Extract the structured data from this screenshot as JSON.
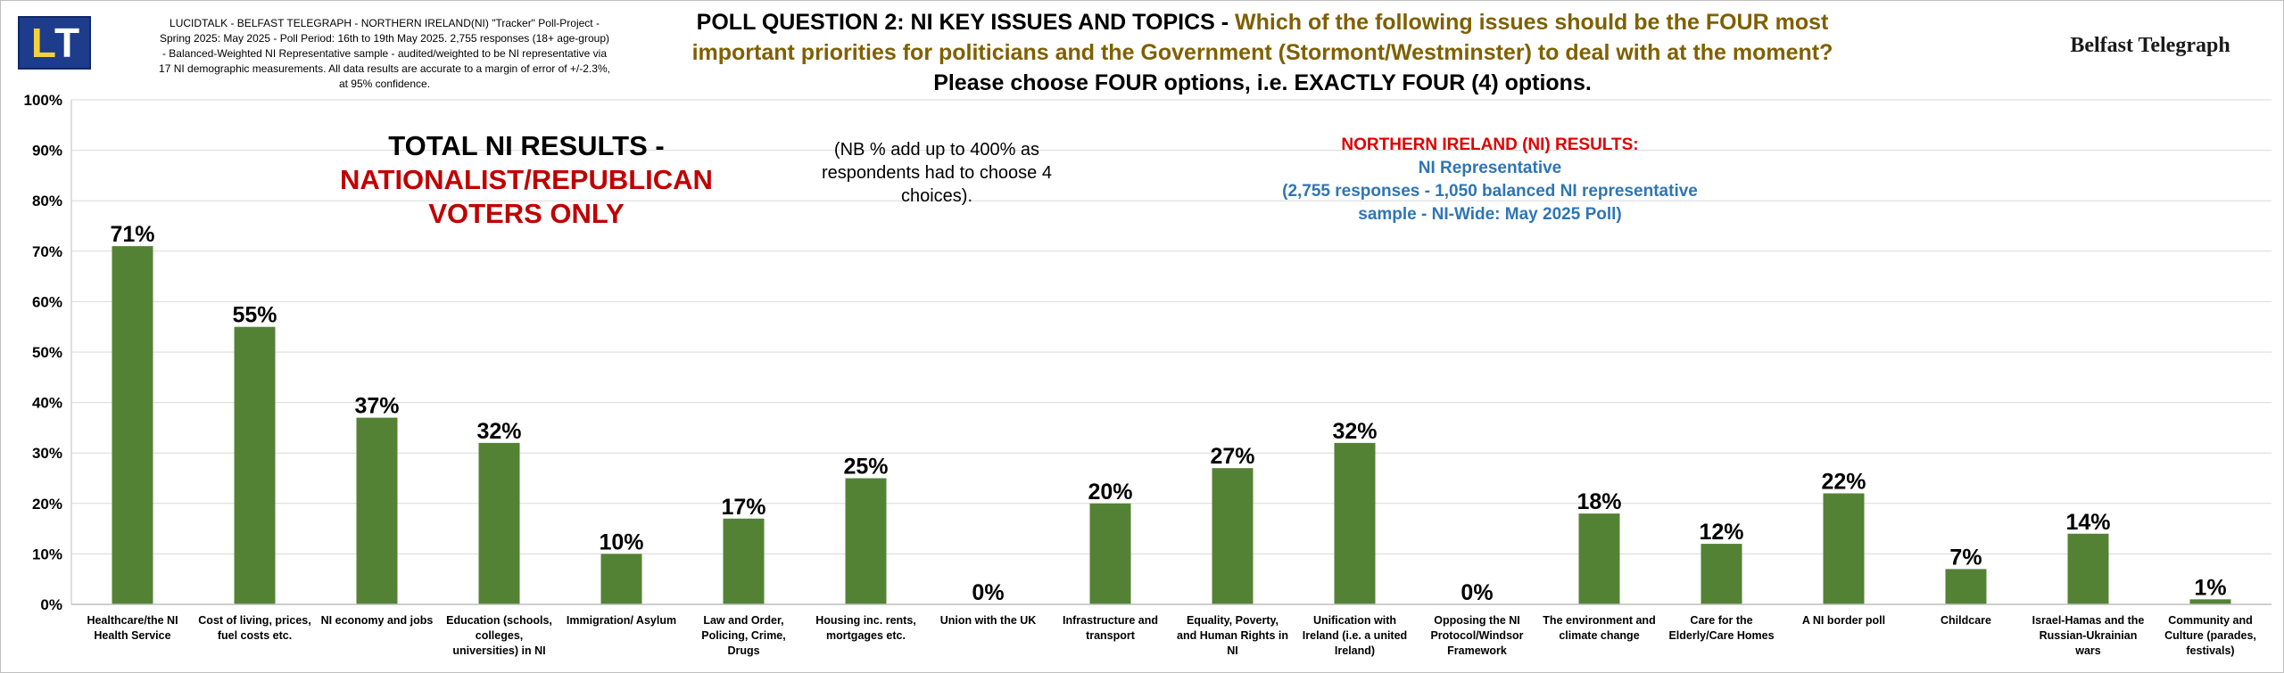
{
  "header": {
    "logo_text_l": "L",
    "logo_text_t": "T",
    "source_note": "LUCIDTALK - BELFAST TELEGRAPH - NORTHERN IRELAND(NI) \"Tracker\" Poll-Project - Spring 2025: May 2025 - Poll Period: 16th to 19th May 2025. 2,755 responses (18+ age-group) - Balanced-Weighted NI Representative sample - audited/weighted to be NI representative via 17 NI demographic measurements. All data results are accurate to a margin of error of +/-2.3%, at 95% confidence.",
    "title_lead": "POLL QUESTION 2: NI KEY ISSUES AND TOPICS - ",
    "title_mid": "Which of the following issues should be the FOUR most important priorities for politicians and the Government (Stormont/Westminster) to deal with at the moment?",
    "title_tail": " Please choose FOUR options, i.e. EXACTLY FOUR (4) options.",
    "brand": "Belfast Telegraph"
  },
  "annotations": {
    "total_line1": "TOTAL NI RESULTS -",
    "total_line2": "NATIONALIST/REPUBLICAN",
    "total_line3": "VOTERS ONLY",
    "nb_note": "(NB % add up to 400% as respondents had to choose 4 choices).",
    "ni_heading": "NORTHERN IRELAND (NI) RESULTS:",
    "ni_line2": "NI Representative",
    "ni_line3": "(2,755 responses - 1,050 balanced NI representative sample - NI-Wide: May 2025 Poll)"
  },
  "colors": {
    "bar": "#548235",
    "grid": "#d9d9d9",
    "title_accent": "#7f6000",
    "red_accent": "#c00000",
    "blue_accent": "#2e75b6",
    "logo_bg": "#1d3c8c",
    "logo_l": "#f2d33a"
  },
  "chart_data": {
    "type": "bar",
    "title": "",
    "xlabel": "",
    "ylabel": "",
    "ylim": [
      0,
      100
    ],
    "yticks": [
      "0%",
      "10%",
      "20%",
      "30%",
      "40%",
      "50%",
      "60%",
      "70%",
      "80%",
      "90%",
      "100%"
    ],
    "grid": true,
    "categories": [
      "Healthcare/the NI Health Service",
      "Cost of living, prices, fuel costs etc.",
      "NI economy and jobs",
      "Education (schools, colleges, universities) in NI",
      "Immigration/ Asylum",
      "Law and Order, Policing, Crime, Drugs",
      "Housing inc. rents, mortgages etc.",
      "Union with the UK",
      "Infrastructure and transport",
      "Equality, Poverty, and Human Rights in NI",
      "Unification with Ireland (i.e. a united Ireland)",
      "Opposing the NI Protocol/Windsor Framework",
      "The environment and climate change",
      "Care for the Elderly/Care Homes",
      "A NI border poll",
      "Childcare",
      "Israel-Hamas and the Russian-Ukrainian wars",
      "Community and Culture (parades, festivals)"
    ],
    "values": [
      71,
      55,
      37,
      32,
      10,
      17,
      25,
      0,
      20,
      27,
      32,
      0,
      18,
      12,
      22,
      7,
      14,
      1
    ],
    "data_labels": [
      "71%",
      "55%",
      "37%",
      "32%",
      "10%",
      "17%",
      "25%",
      "0%",
      "20%",
      "27%",
      "32%",
      "0%",
      "18%",
      "12%",
      "22%",
      "7%",
      "14%",
      "1%"
    ]
  }
}
